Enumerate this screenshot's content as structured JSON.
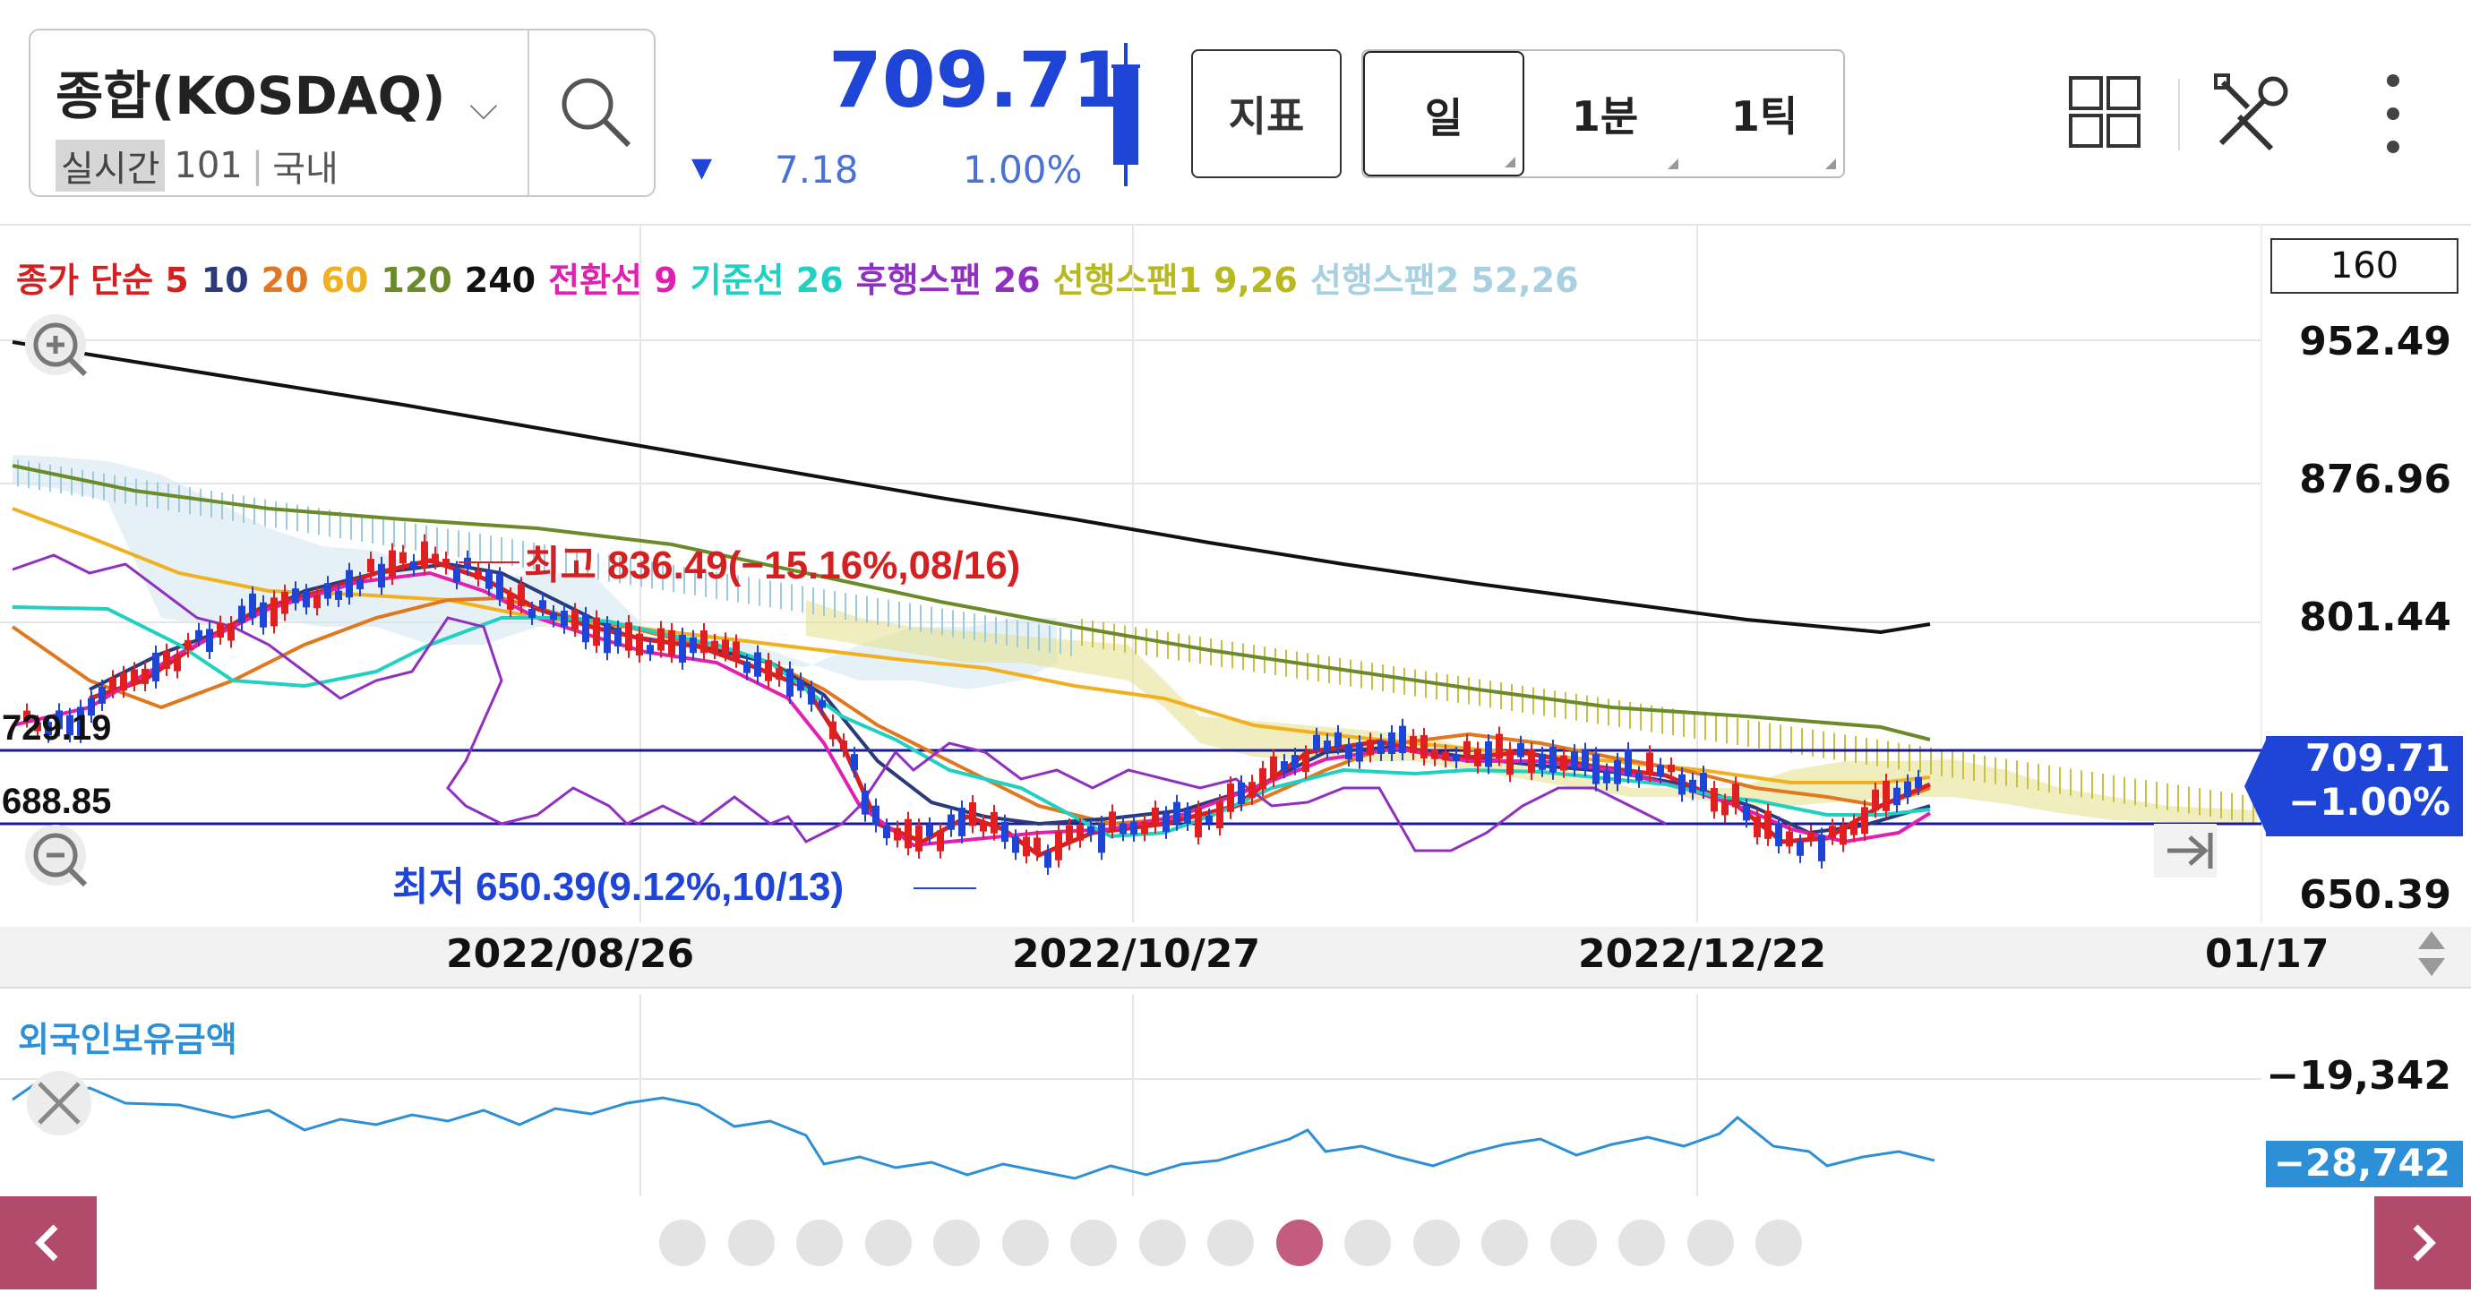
{
  "header": {
    "symbol_name": "종합(KOSDAQ)",
    "realtime_badge": "실시간",
    "realtime_code": "101",
    "market": "국내",
    "price": "709.71",
    "change_value": "7.18",
    "change_pct": "1.00%",
    "indicator_button": "지표",
    "periods": [
      "일",
      "1분",
      "1틱"
    ],
    "selected_period": "일",
    "price_color": "#1e45d6"
  },
  "legend": {
    "items": [
      {
        "text": "종가 단순 5",
        "color": "#d42020"
      },
      {
        "text": "10",
        "color": "#2a3a7a"
      },
      {
        "text": "20",
        "color": "#e07820"
      },
      {
        "text": "60",
        "color": "#f0b020"
      },
      {
        "text": "120",
        "color": "#6b8a2a"
      },
      {
        "text": "240",
        "color": "#111111"
      },
      {
        "text": "전환선 9",
        "color": "#e020b0"
      },
      {
        "text": "기준선 26",
        "color": "#20d0c0"
      },
      {
        "text": "후행스팬 26",
        "color": "#9030c0"
      },
      {
        "text": "선행스팬1 9,26",
        "color": "#b8b820"
      },
      {
        "text": "선행스팬2 52,26",
        "color": "#a8d0e0"
      }
    ]
  },
  "main_chart": {
    "scale_value": "160",
    "y_labels": [
      "952.49",
      "876.96",
      "801.44",
      "650.39"
    ],
    "x_labels": [
      "2022/08/26",
      "2022/10/27",
      "2022/12/22",
      "01/17"
    ],
    "high_annotation": "최고 836.49(−15.16%,08/16)",
    "low_annotation": "최저 650.39(9.12%,10/13)",
    "hline_upper_label": "729.19",
    "hline_lower_label": "688.85",
    "price_tag": "709.71",
    "price_tag_pct": "−1.00%"
  },
  "sub_chart": {
    "title": "외국인보유금액",
    "y_label": "−19,342",
    "current_tag": "−28,742",
    "line_color": "#2d8fd6"
  },
  "pager": {
    "page_count": 17,
    "active_index": 9
  },
  "chart_data": {
    "type": "line",
    "title": "종합(KOSDAQ)",
    "xlabel": "",
    "ylabel": "",
    "x_ticks": [
      "2022/08/26",
      "2022/10/27",
      "2022/12/22",
      "01/17"
    ],
    "y_ticks": [
      952.49,
      876.96,
      801.44,
      650.39
    ],
    "ylim": [
      640,
      970
    ],
    "series": [
      {
        "name": "240",
        "color": "#111111",
        "values": [
          950,
          944,
          936,
          927,
          917,
          906,
          895,
          884,
          872,
          860,
          848,
          836,
          824,
          812,
          804
        ]
      },
      {
        "name": "120",
        "color": "#6b8a2a",
        "values": [
          880,
          868,
          858,
          850,
          846,
          838,
          826,
          814,
          802,
          790,
          778,
          769,
          762,
          755,
          748
        ]
      },
      {
        "name": "60",
        "color": "#f0b020",
        "values": [
          858,
          838,
          822,
          816,
          812,
          800,
          790,
          782,
          776,
          766,
          755,
          738,
          726,
          720,
          716
        ]
      },
      {
        "name": "종가 단순 5",
        "color": "#d42020",
        "values": [
          750,
          764,
          782,
          798,
          816,
          826,
          820,
          806,
          784,
          710,
          665,
          676,
          688,
          696,
          708,
          728,
          738,
          740,
          736,
          730,
          726,
          722,
          704,
          686,
          694,
          710
        ]
      }
    ],
    "high": {
      "label": "최고",
      "value": 836.49,
      "change": "−15.16%",
      "date": "08/16"
    },
    "low": {
      "label": "최저",
      "value": 650.39,
      "change": "9.12%",
      "date": "10/13"
    },
    "hlines": [
      729.19,
      688.85
    ],
    "grid": true
  }
}
